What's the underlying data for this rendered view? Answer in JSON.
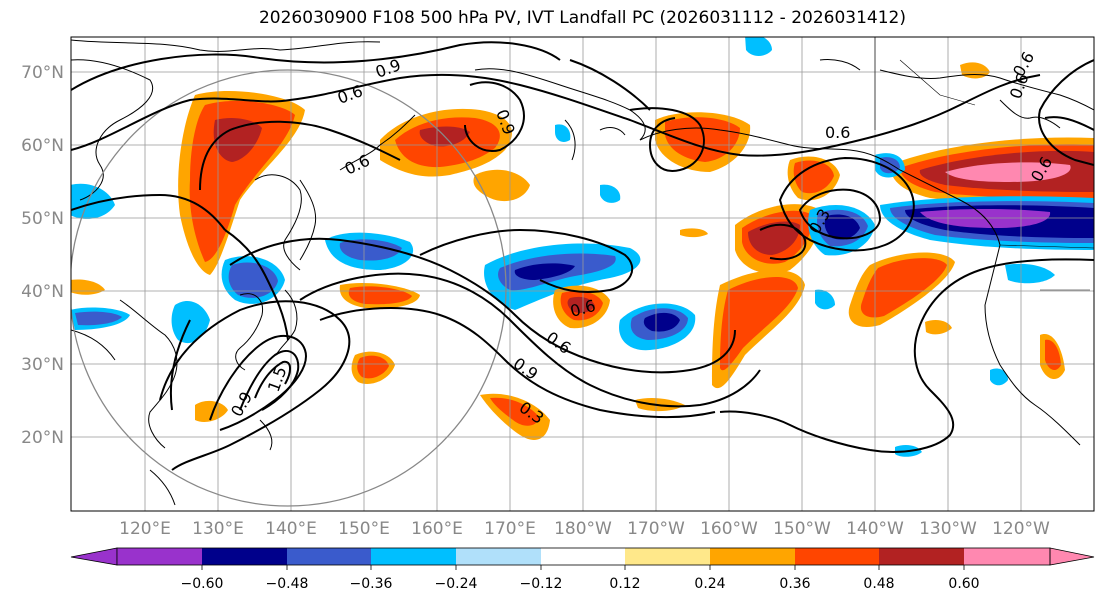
{
  "title": "2026030900 F108 500 hPa PV, IVT Landfall PC (2026031112 - 2026031412)",
  "lat_labels": [
    "70°N",
    "60°N",
    "50°N",
    "40°N",
    "30°N",
    "20°N"
  ],
  "lon_labels": [
    "120°E",
    "130°E",
    "140°E",
    "150°E",
    "160°E",
    "170°E",
    "180°W",
    "170°W",
    "160°W",
    "150°W",
    "140°W",
    "130°W",
    "120°W"
  ],
  "colorbar": {
    "ticks": [
      "−0.60",
      "−0.48",
      "−0.36",
      "−0.24",
      "−0.12",
      "0.12",
      "0.24",
      "0.36",
      "0.48",
      "0.60"
    ],
    "colors": [
      "#9932cc",
      "#00008b",
      "#3a5bcc",
      "#00bfff",
      "#b0e0fa",
      "#ffffff",
      "#ffe88a",
      "#ffa500",
      "#ff4500",
      "#b22222",
      "#ff88b0"
    ]
  },
  "contour_labels": [
    "0.9",
    "0.6",
    "0.6",
    "0.9",
    "0.6",
    "0.6",
    "0.6",
    "0.9",
    "0.3",
    "0.9",
    "1.5",
    "0.6",
    "0.6",
    "0.3",
    "0.6"
  ]
}
